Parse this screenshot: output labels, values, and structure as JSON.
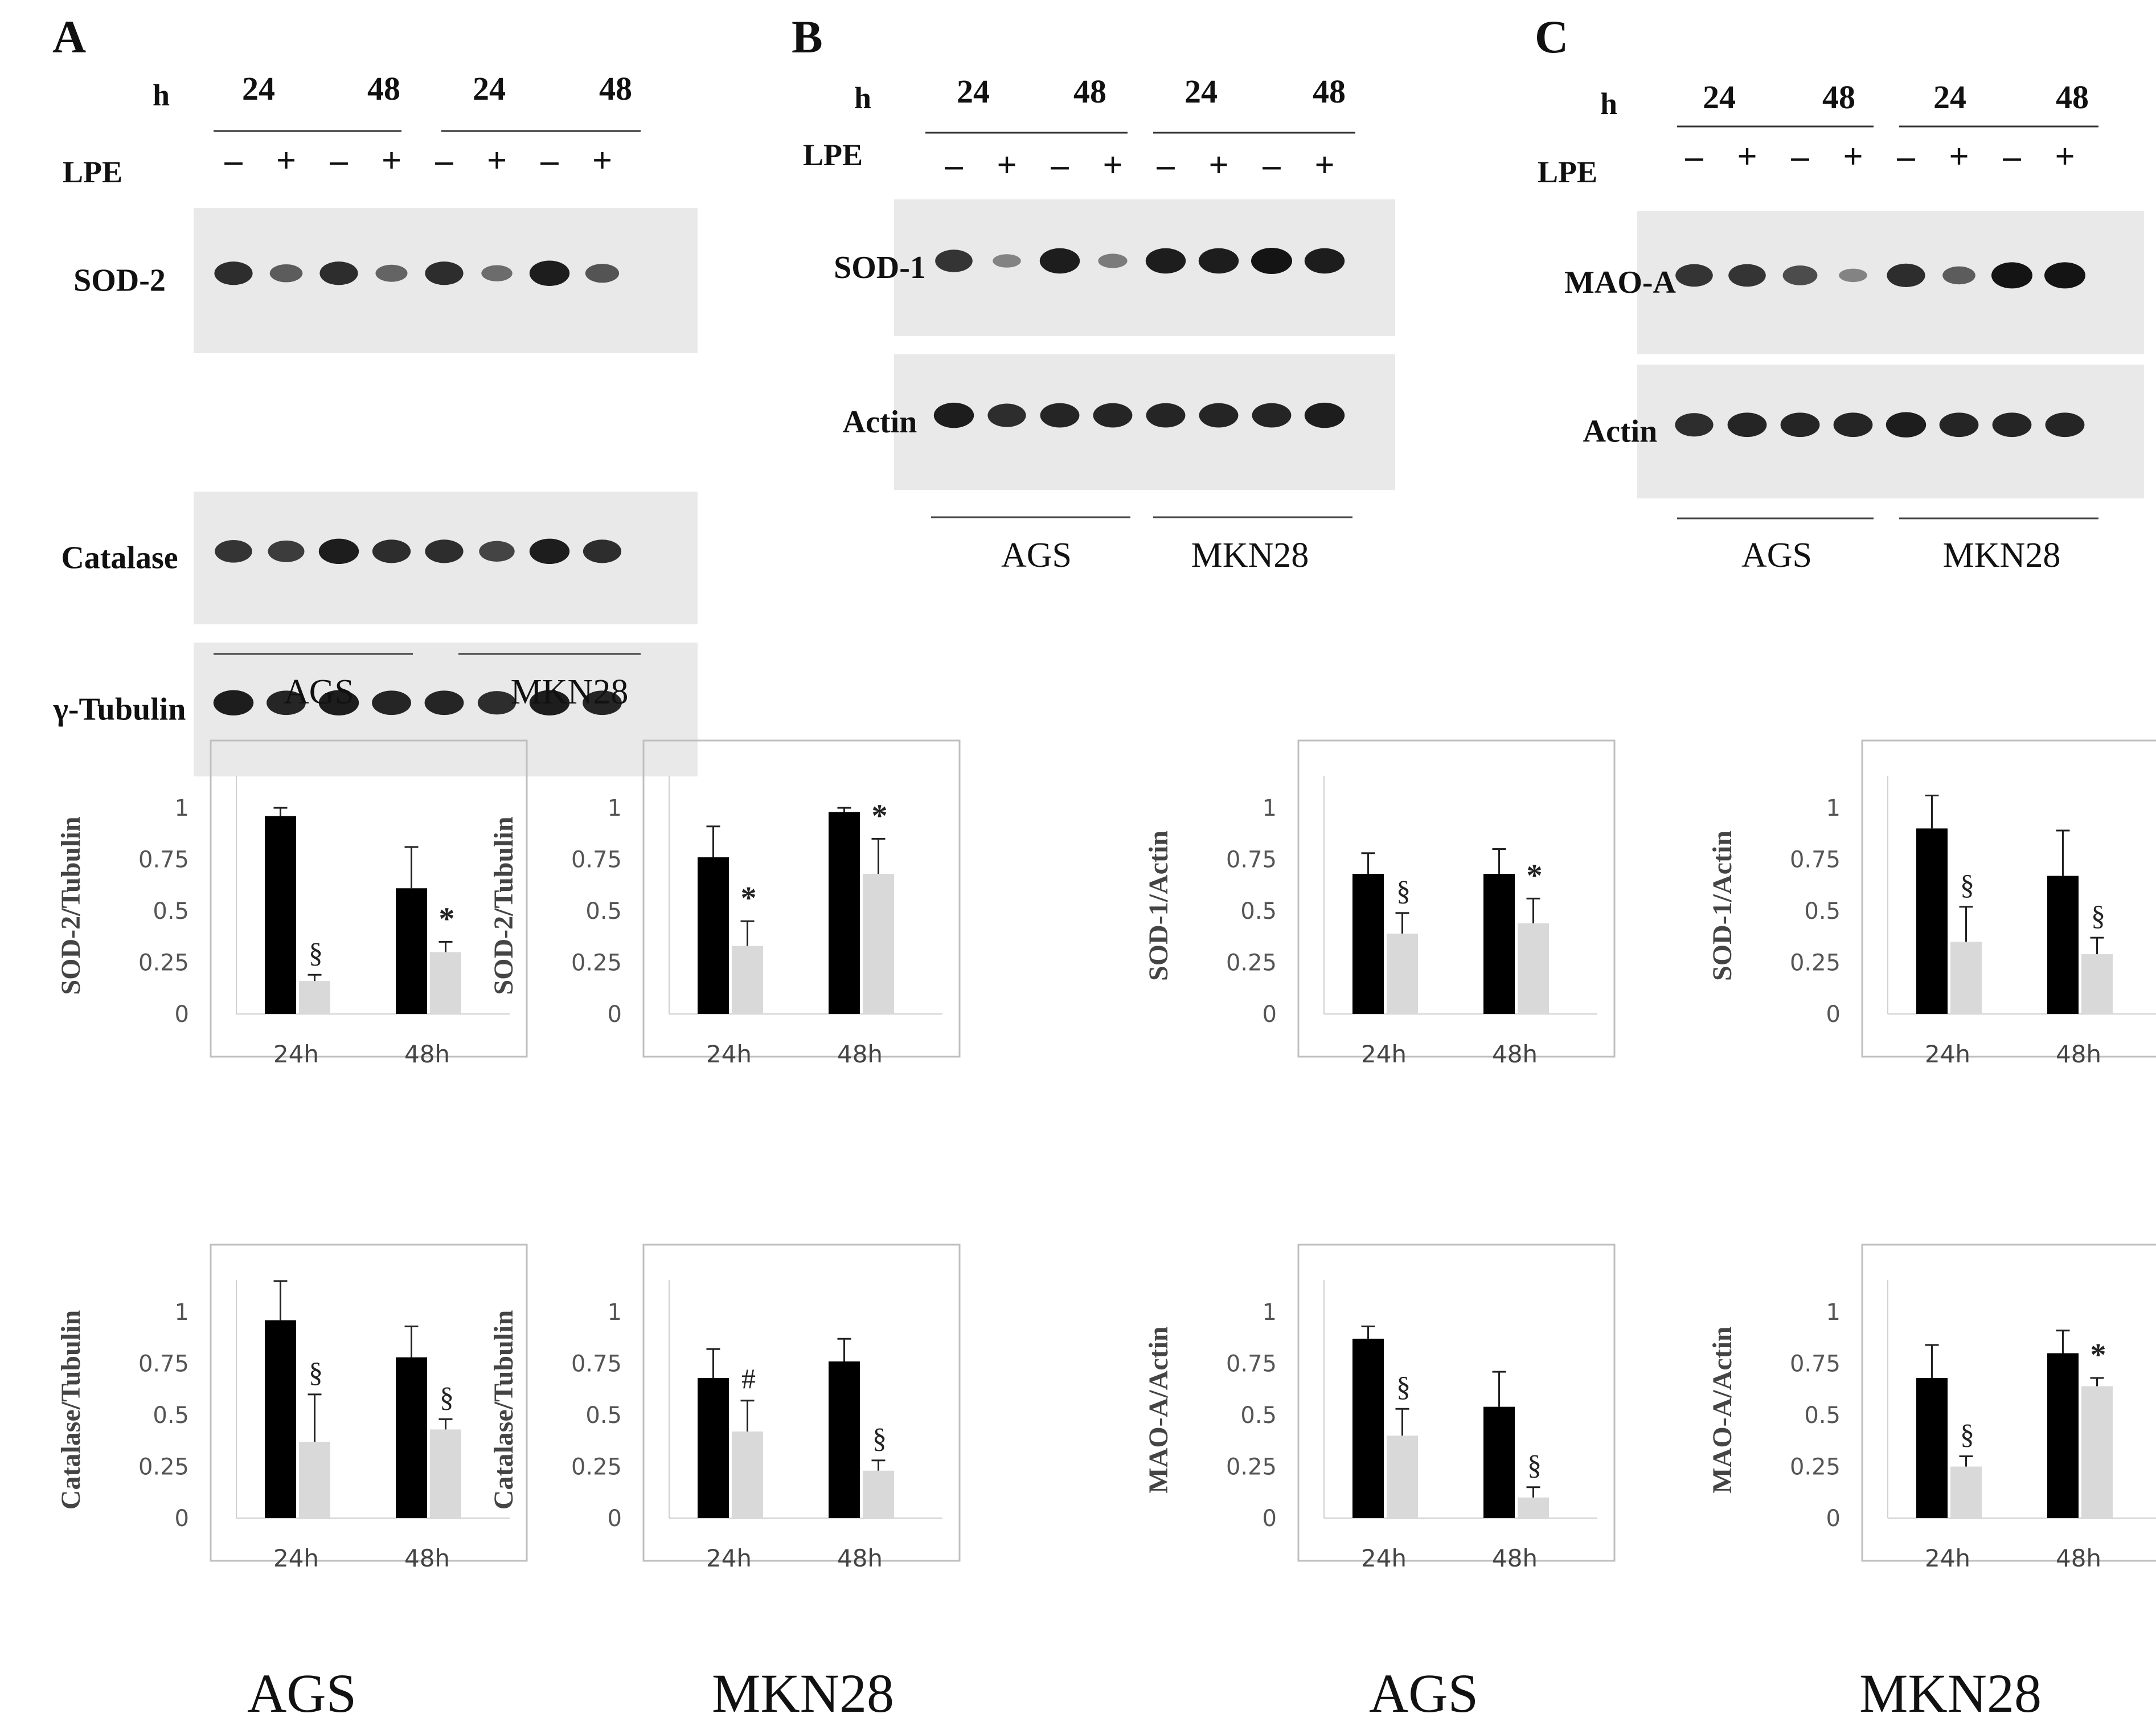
{
  "panels": [
    {
      "letter": "A",
      "hours_label": "h",
      "lpe_label": "LPE",
      "hours": [
        "24",
        "48",
        "24",
        "48"
      ],
      "signs": [
        "–",
        "+",
        "–",
        "+",
        "–",
        "+",
        "–",
        "+"
      ],
      "blots": [
        {
          "label": "SOD-2",
          "bands": [
            0.85,
            0.55,
            0.85,
            0.5,
            0.85,
            0.45,
            0.95,
            0.6
          ]
        },
        {
          "label": "Catalase",
          "bands": [
            0.8,
            0.75,
            0.95,
            0.85,
            0.85,
            0.7,
            0.95,
            0.85
          ]
        },
        {
          "label": "γ-Tubulin",
          "bands": [
            0.95,
            0.9,
            0.95,
            0.9,
            0.9,
            0.85,
            0.95,
            0.9
          ]
        }
      ],
      "cell_lines": [
        "AGS",
        "MKN28"
      ]
    },
    {
      "letter": "B",
      "hours_label": "h",
      "lpe_label": "LPE",
      "hours": [
        "24",
        "48",
        "24",
        "48"
      ],
      "signs": [
        "–",
        "+",
        "–",
        "+",
        "–",
        "+",
        "–",
        "+"
      ],
      "blots": [
        {
          "label": "SOD-1",
          "bands": [
            0.8,
            0.3,
            0.95,
            0.35,
            0.95,
            0.95,
            1.0,
            0.95
          ]
        },
        {
          "label": "Actin",
          "bands": [
            0.95,
            0.85,
            0.9,
            0.9,
            0.9,
            0.9,
            0.9,
            0.95
          ]
        }
      ],
      "cell_lines": [
        "AGS",
        "MKN28"
      ]
    },
    {
      "letter": "C",
      "hours_label": "h",
      "lpe_label": "LPE",
      "hours": [
        "24",
        "48",
        "24",
        "48"
      ],
      "signs": [
        "–",
        "+",
        "–",
        "+",
        "–",
        "+",
        "–",
        "+"
      ],
      "blots": [
        {
          "label": "MAO-A",
          "bands": [
            0.8,
            0.8,
            0.65,
            0.3,
            0.85,
            0.55,
            1.0,
            1.0
          ]
        },
        {
          "label": "Actin",
          "bands": [
            0.85,
            0.9,
            0.9,
            0.9,
            0.95,
            0.9,
            0.9,
            0.9
          ]
        }
      ],
      "cell_lines": [
        "AGS",
        "MKN28"
      ]
    }
  ],
  "bottom_labels": [
    "AGS",
    "MKN28",
    "AGS",
    "MKN28"
  ],
  "colors": {
    "control": "#000000",
    "lpe": "#d9d9d9",
    "frame": "#bfbfbf",
    "blot_bg": "#e9e9e9",
    "band": "#141414"
  },
  "chart_data": [
    {
      "type": "bar",
      "ylabel": "SOD-2/Tubulin",
      "categories": [
        "24h",
        "48h"
      ],
      "yticks": [
        "0",
        "0.25",
        "0.5",
        "0.75",
        "1"
      ],
      "ylim": [
        0,
        1.1
      ],
      "series": [
        {
          "values": [
            0.96,
            0.61
          ],
          "errors": [
            0.04,
            0.2
          ]
        },
        {
          "values": [
            0.16,
            0.3
          ],
          "errors": [
            0.03,
            0.05
          ]
        }
      ],
      "annotations": [
        "§",
        "*"
      ]
    },
    {
      "type": "bar",
      "ylabel": "SOD-2/Tubulin",
      "categories": [
        "24h",
        "48h"
      ],
      "yticks": [
        "0",
        "0.25",
        "0.5",
        "0.75",
        "1"
      ],
      "ylim": [
        0,
        1.1
      ],
      "series": [
        {
          "values": [
            0.76,
            0.98
          ],
          "errors": [
            0.15,
            0.02
          ]
        },
        {
          "values": [
            0.33,
            0.68
          ],
          "errors": [
            0.12,
            0.17
          ]
        }
      ],
      "annotations": [
        "*",
        "*"
      ]
    },
    {
      "type": "bar",
      "ylabel": "SOD-1/Actin",
      "categories": [
        "24h",
        "48h"
      ],
      "yticks": [
        "0",
        "0.25",
        "0.5",
        "0.75",
        "1"
      ],
      "ylim": [
        0,
        1.1
      ],
      "series": [
        {
          "values": [
            0.68,
            0.68
          ],
          "errors": [
            0.1,
            0.12
          ]
        },
        {
          "values": [
            0.39,
            0.44
          ],
          "errors": [
            0.1,
            0.12
          ]
        }
      ],
      "annotations": [
        "§",
        "*"
      ]
    },
    {
      "type": "bar",
      "ylabel": "SOD-1/Actin",
      "categories": [
        "24h",
        "48h"
      ],
      "yticks": [
        "0",
        "0.25",
        "0.5",
        "0.75",
        "1"
      ],
      "ylim": [
        0,
        1.1
      ],
      "series": [
        {
          "values": [
            0.9,
            0.67
          ],
          "errors": [
            0.16,
            0.22
          ]
        },
        {
          "values": [
            0.35,
            0.29
          ],
          "errors": [
            0.17,
            0.08
          ]
        }
      ],
      "annotations": [
        "§",
        "§"
      ]
    },
    {
      "type": "bar",
      "ylabel": "Catalase/Tubulin",
      "categories": [
        "24h",
        "48h"
      ],
      "yticks": [
        "0",
        "0.25",
        "0.5",
        "0.75",
        "1"
      ],
      "ylim": [
        0,
        1.1
      ],
      "series": [
        {
          "values": [
            0.96,
            0.78
          ],
          "errors": [
            0.19,
            0.15
          ]
        },
        {
          "values": [
            0.37,
            0.43
          ],
          "errors": [
            0.23,
            0.05
          ]
        }
      ],
      "annotations": [
        "§",
        "§"
      ]
    },
    {
      "type": "bar",
      "ylabel": "Catalase/Tubulin",
      "categories": [
        "24h",
        "48h"
      ],
      "yticks": [
        "0",
        "0.25",
        "0.5",
        "0.75",
        "1"
      ],
      "ylim": [
        0,
        1.1
      ],
      "series": [
        {
          "values": [
            0.68,
            0.76
          ],
          "errors": [
            0.14,
            0.11
          ]
        },
        {
          "values": [
            0.42,
            0.23
          ],
          "errors": [
            0.15,
            0.05
          ]
        }
      ],
      "annotations": [
        "#",
        "§"
      ]
    },
    {
      "type": "bar",
      "ylabel": "MAO-A/Actin",
      "categories": [
        "24h",
        "48h"
      ],
      "yticks": [
        "0",
        "0.25",
        "0.5",
        "0.75",
        "1"
      ],
      "ylim": [
        0,
        1.1
      ],
      "series": [
        {
          "values": [
            0.87,
            0.54
          ],
          "errors": [
            0.06,
            0.17
          ]
        },
        {
          "values": [
            0.4,
            0.1
          ],
          "errors": [
            0.13,
            0.05
          ]
        }
      ],
      "annotations": [
        "§",
        "§"
      ]
    },
    {
      "type": "bar",
      "ylabel": "MAO-A/Actin",
      "categories": [
        "24h",
        "48h"
      ],
      "yticks": [
        "0",
        "0.25",
        "0.5",
        "0.75",
        "1"
      ],
      "ylim": [
        0,
        1.1
      ],
      "series": [
        {
          "values": [
            0.68,
            0.8
          ],
          "errors": [
            0.16,
            0.11
          ]
        },
        {
          "values": [
            0.25,
            0.64
          ],
          "errors": [
            0.05,
            0.04
          ]
        }
      ],
      "annotations": [
        "§",
        "*"
      ]
    }
  ]
}
